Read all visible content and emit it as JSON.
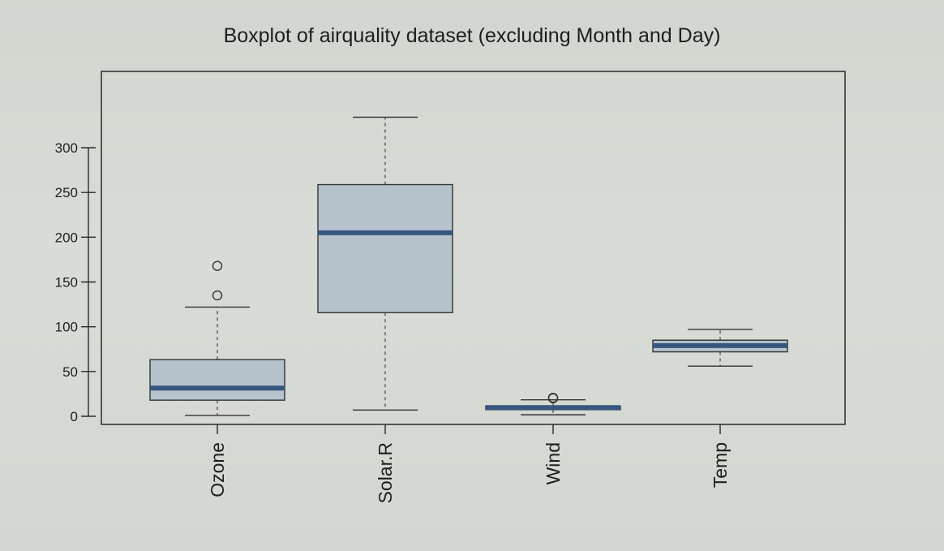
{
  "chart_data": {
    "type": "boxplot",
    "title": "Boxplot of airquality dataset (excluding Month and Day)",
    "xlabel": "",
    "ylabel": "",
    "ylim": [
      -5,
      385
    ],
    "yticks": [
      0,
      50,
      100,
      150,
      200,
      250,
      300
    ],
    "categories": [
      "Ozone",
      "Solar.R",
      "Wind",
      "Temp"
    ],
    "boxes": [
      {
        "name": "Ozone",
        "whisker_low": 1,
        "q1": 18,
        "median": 31.5,
        "q3": 63.25,
        "whisker_high": 122,
        "outliers": [
          135,
          168
        ]
      },
      {
        "name": "Solar.R",
        "whisker_low": 7,
        "q1": 115.75,
        "median": 205,
        "q3": 258.75,
        "whisker_high": 334,
        "outliers": []
      },
      {
        "name": "Wind",
        "whisker_low": 1.7,
        "q1": 7.4,
        "median": 9.7,
        "q3": 11.5,
        "whisker_high": 18.4,
        "outliers": [
          20.1,
          20.7
        ]
      },
      {
        "name": "Temp",
        "whisker_low": 56,
        "q1": 72,
        "median": 79,
        "q3": 85,
        "whisker_high": 97,
        "outliers": []
      }
    ],
    "box_fill": "#b6c2cc",
    "median_color": "#36567e",
    "grid": false,
    "legend": "none"
  }
}
